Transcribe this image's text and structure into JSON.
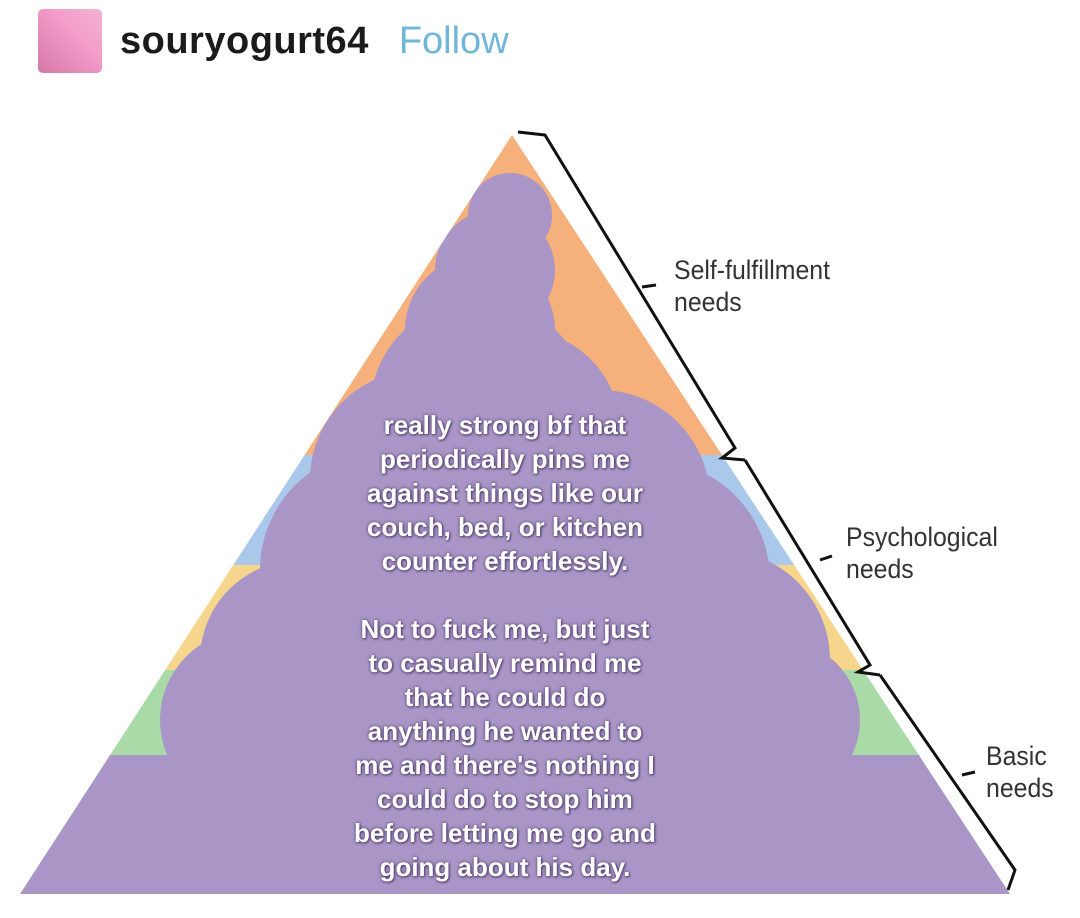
{
  "post": {
    "username": "souryogurt64",
    "follow_label": "Follow"
  },
  "diagram": {
    "levels": [
      {
        "label": "Self-fulfillment needs",
        "line1": "Self-fulfillment",
        "line2": "needs"
      },
      {
        "label": "Psychological needs",
        "line1": "Psychological",
        "line2": "needs"
      },
      {
        "label": "Basic needs",
        "line1": "Basic",
        "line2": "needs"
      }
    ],
    "colors": {
      "top": "#f5b07c",
      "esteem": "#a9c8ea",
      "belonging": "#f6d58c",
      "safety": "#aadaa8",
      "overlay": "#a996c6"
    }
  },
  "overlay_text": {
    "paragraph1": [
      "really strong bf that",
      "periodically pins me",
      "against things like our",
      "couch, bed, or kitchen",
      "counter effortlessly."
    ],
    "paragraph2": [
      "Not to fuck me, but just",
      "to casually remind me",
      "that he could do",
      "anything he wanted to",
      "me and there's nothing I",
      "could do to stop him",
      "before letting me go and",
      "going about his day."
    ]
  }
}
